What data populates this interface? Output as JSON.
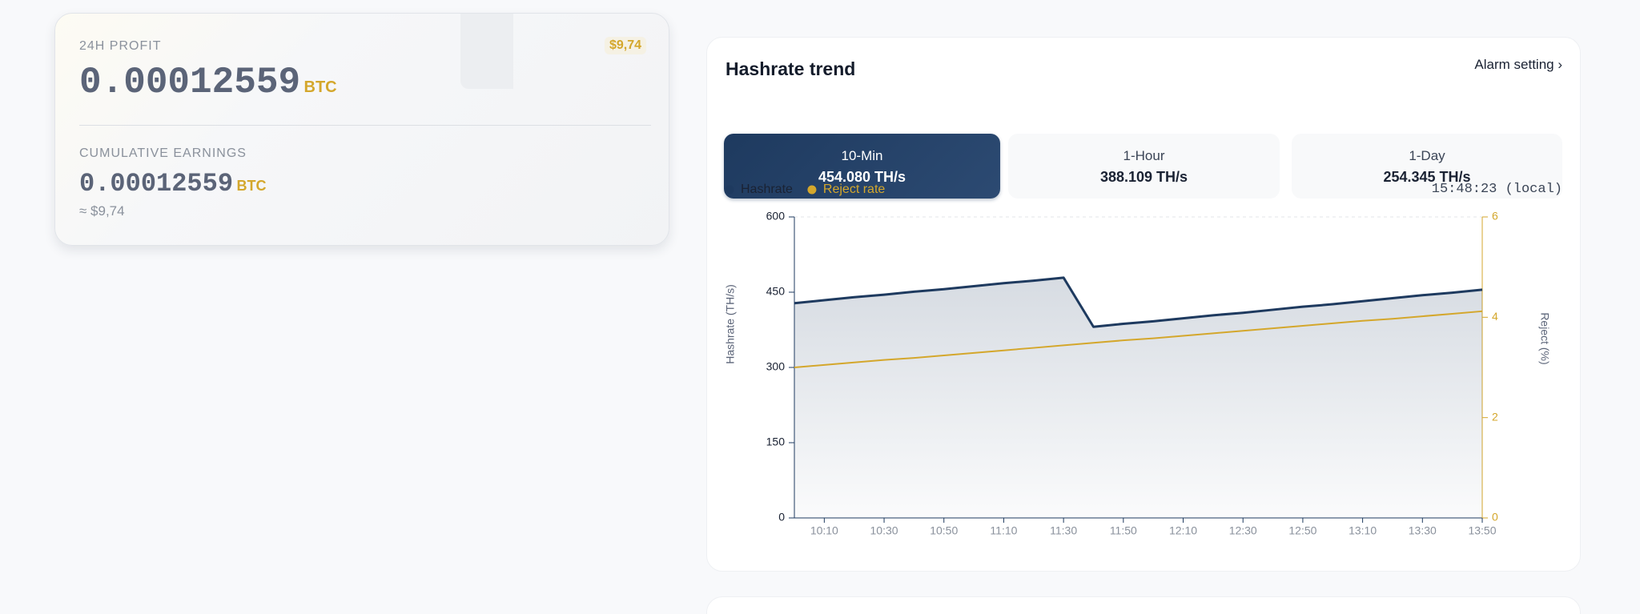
{
  "profit_card": {
    "profit_label": "24H PROFIT",
    "profit_value": "0.00012559",
    "profit_unit": "BTC",
    "profit_fiat": "$9,74",
    "cumulative_label": "CUMULATIVE EARNINGS",
    "cumulative_value": "0.00012559",
    "cumulative_unit": "BTC",
    "cumulative_fiat": "≈ $9,74"
  },
  "hashrate_card": {
    "title": "Hashrate trend",
    "alarm_link": "Alarm setting ›",
    "tabs": [
      {
        "label": "10-Min",
        "value": "454.080 TH/s"
      },
      {
        "label": "1-Hour",
        "value": "388.109 TH/s"
      },
      {
        "label": "1-Day",
        "value": "254.345 TH/s"
      }
    ],
    "timestamp": "15:48:23 (local)"
  },
  "chart_data": {
    "type": "line",
    "x": [
      "10:00",
      "10:10",
      "10:20",
      "10:30",
      "10:40",
      "10:50",
      "11:00",
      "11:10",
      "11:20",
      "11:30",
      "11:40",
      "11:50",
      "12:00",
      "12:10",
      "12:20",
      "12:30",
      "12:40",
      "12:50",
      "13:00",
      "13:10",
      "13:20",
      "13:30",
      "13:40",
      "13:50"
    ],
    "series": [
      {
        "name": "Hashrate",
        "color": "#1e3a5f",
        "values": [
          428,
          434,
          440,
          445,
          451,
          456,
          462,
          468,
          473,
          479,
          381,
          387,
          392,
          398,
          404,
          409,
          415,
          421,
          426,
          432,
          438,
          444,
          449,
          455
        ]
      },
      {
        "name": "Reject rate",
        "color": "#d4a72c",
        "axis": "y2",
        "values": [
          3.0,
          3.05,
          3.1,
          3.15,
          3.19,
          3.24,
          3.29,
          3.34,
          3.39,
          3.44,
          3.49,
          3.54,
          3.58,
          3.63,
          3.68,
          3.73,
          3.78,
          3.83,
          3.88,
          3.93,
          3.97,
          4.02,
          4.07,
          4.12
        ]
      }
    ],
    "xlim": [
      "10:00",
      "13:50"
    ],
    "xticks": [
      "10:10",
      "10:30",
      "10:50",
      "11:10",
      "11:30",
      "11:50",
      "12:10",
      "12:30",
      "12:50",
      "13:10",
      "13:30",
      "13:50"
    ],
    "ylim": [
      0,
      600
    ],
    "yticks": [
      0,
      150,
      300,
      450,
      600
    ],
    "y2lim": [
      0,
      6
    ],
    "y2ticks": [
      0,
      2,
      4,
      6
    ],
    "y_label": "Hashrate (TH/s)",
    "y2_label": "Reject (%)",
    "grid": false
  }
}
